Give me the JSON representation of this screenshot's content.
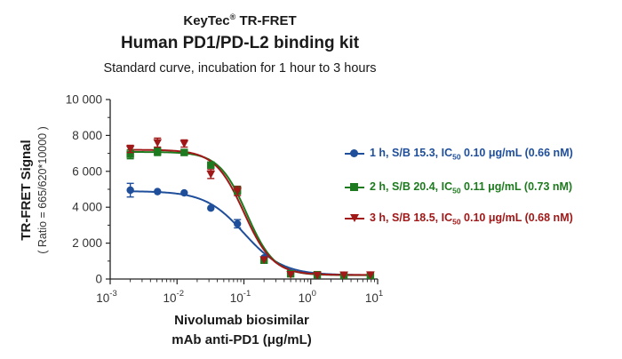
{
  "header": {
    "brand": "KeyTec",
    "brand_reg": "®",
    "brand_suffix": "TR-FRET",
    "title": "Human PD1/PD-L2 binding kit",
    "subtitle": "Standard curve,  incubation for 1 hour to 3 hours"
  },
  "chart_data": {
    "type": "scatter",
    "x_scale": "log",
    "xlim_exponents": [
      -3,
      1
    ],
    "ylim": [
      0,
      10000
    ],
    "yticks": [
      0,
      2000,
      4000,
      6000,
      8000,
      10000
    ],
    "ytick_labels": [
      "0",
      "2 000",
      "4 000",
      "6 000",
      "8 000",
      "10 000"
    ],
    "xtick_base": "10",
    "xtick_exponents": [
      "-3",
      "-2",
      "-1",
      "0",
      "1"
    ],
    "ylabel": "TR-FRET Signal",
    "ylabel_sub": "( Ratio = 665/620*10000 )",
    "xlabel_line1": "Nivolumab biosimilar",
    "xlabel_line2": "mAb anti-PD1  (μg/mL)",
    "series": [
      {
        "name_parts": [
          "1 h, S/B 15.3, IC",
          "50",
          " 0.10 μg/mL (0.66 nM)"
        ],
        "color": "#1f4e9a",
        "marker": "circle",
        "x": [
          0.002,
          0.0051,
          0.0128,
          0.032,
          0.08,
          0.2,
          0.5,
          1.25,
          3.13,
          7.8
        ],
        "y": [
          4950,
          4870,
          4800,
          3950,
          3080,
          1180,
          330,
          230,
          220,
          220
        ],
        "err": [
          380,
          0,
          0,
          0,
          230,
          0,
          0,
          0,
          0,
          0
        ],
        "fit": {
          "bottom": 215,
          "top": 4900,
          "ic50": 0.1,
          "hill": 1.5
        }
      },
      {
        "name_parts": [
          "2 h, S/B 20.4, IC",
          "50",
          " 0.11 μg/mL (0.73 nM)"
        ],
        "color": "#1e7a1e",
        "marker": "square",
        "x": [
          0.002,
          0.0051,
          0.0128,
          0.032,
          0.08,
          0.2,
          0.5,
          1.25,
          3.13,
          7.8
        ],
        "y": [
          6950,
          7100,
          7050,
          6350,
          4950,
          1050,
          290,
          240,
          210,
          210
        ],
        "err": [
          250,
          220,
          0,
          0,
          220,
          0,
          0,
          0,
          0,
          0
        ],
        "fit": {
          "bottom": 215,
          "top": 7080,
          "ic50": 0.11,
          "hill": 2.1
        }
      },
      {
        "name_parts": [
          "3 h, S/B 18.5, IC",
          "50",
          " 0.10 μg/mL (0.68 nM)"
        ],
        "color": "#a01818",
        "marker": "triangle-down",
        "x": [
          0.002,
          0.0051,
          0.0128,
          0.032,
          0.08,
          0.2,
          0.5,
          1.25,
          3.13,
          7.8
        ],
        "y": [
          7250,
          7600,
          7550,
          5850,
          4900,
          1080,
          260,
          220,
          230,
          240
        ],
        "err": [
          200,
          250,
          200,
          250,
          250,
          0,
          0,
          0,
          0,
          0
        ],
        "fit": {
          "bottom": 225,
          "top": 7200,
          "ic50": 0.1,
          "hill": 2.0
        }
      }
    ]
  }
}
